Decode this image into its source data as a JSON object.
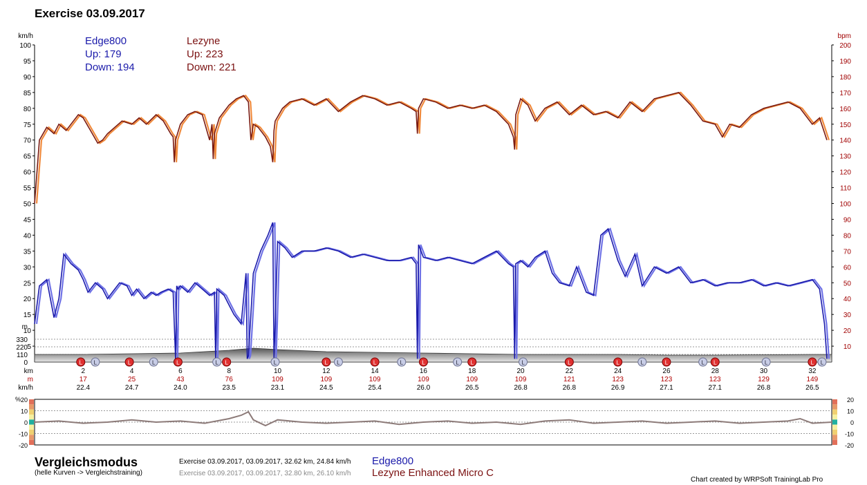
{
  "title": "Exercise 03.09.2017",
  "colors": {
    "edge": "#1a1aaa",
    "edge_light": "#6f72e6",
    "lezyne": "#7a1010",
    "hr_light": "#f08a3c",
    "hr_dark": "#7a1a10",
    "diff": "#8c7a78",
    "elev": "#555555"
  },
  "legend": {
    "edge": {
      "name": "Edge800",
      "up": "Up: 179",
      "down": "Down: 194"
    },
    "lezyne": {
      "name": "Lezyne",
      "up": "Up: 223",
      "down": "Down: 221"
    }
  },
  "chart_data": {
    "type": "line",
    "left_axis": {
      "unit": "km/h",
      "ticks": [
        "100",
        "95",
        "90",
        "85",
        "80",
        "75",
        "70",
        "65",
        "60",
        "55",
        "50",
        "45",
        "40",
        "35",
        "30",
        "25",
        "20",
        "15",
        "10",
        "5"
      ],
      "range": [
        0,
        100
      ]
    },
    "right_axis": {
      "unit": "bpm",
      "ticks": [
        "200",
        "190",
        "180",
        "170",
        "160",
        "150",
        "140",
        "130",
        "120",
        "110",
        "100",
        "90",
        "80",
        "70",
        "60",
        "50",
        "40",
        "30",
        "20",
        "10"
      ],
      "range": [
        0,
        200
      ]
    },
    "elevation_axis": {
      "unit": "m",
      "ticks": [
        "330",
        "220",
        "110",
        "0"
      ],
      "range": [
        0,
        440
      ]
    },
    "x_range": [
      0,
      32.8
    ],
    "km_row": {
      "label": "km",
      "values": [
        "2",
        "4",
        "6",
        "8",
        "10",
        "12",
        "14",
        "16",
        "18",
        "20",
        "22",
        "24",
        "26",
        "28",
        "30",
        "32"
      ]
    },
    "m_row": {
      "label": "m",
      "values": [
        "17",
        "25",
        "43",
        "76",
        "109",
        "109",
        "109",
        "109",
        "109",
        "109",
        "121",
        "123",
        "123",
        "123",
        "129",
        "149"
      ]
    },
    "kmh_row": {
      "label": "km/h",
      "values": [
        "22.4",
        "24.7",
        "24.0",
        "23.5",
        "23.1",
        "24.5",
        "25.4",
        "26.0",
        "26.5",
        "26.8",
        "26.8",
        "26.9",
        "27.1",
        "27.1",
        "26.8",
        "26.5"
      ]
    },
    "speed_series": {
      "x": [
        0,
        0.2,
        0.5,
        0.8,
        1.0,
        1.2,
        1.5,
        1.8,
        2.0,
        2.2,
        2.5,
        2.8,
        3.0,
        3.2,
        3.5,
        3.8,
        4.0,
        4.2,
        4.5,
        4.8,
        5.0,
        5.2,
        5.5,
        5.7,
        5.8,
        5.85,
        5.9,
        6.0,
        6.3,
        6.6,
        6.9,
        7.2,
        7.4,
        7.45,
        7.5,
        7.8,
        8.0,
        8.2,
        8.5,
        8.7,
        8.75,
        8.8,
        9.0,
        9.3,
        9.6,
        9.8,
        9.85,
        9.9,
        10.0,
        10.3,
        10.6,
        11.0,
        11.5,
        12.0,
        12.5,
        13.0,
        13.5,
        14.0,
        14.5,
        15.0,
        15.5,
        15.7,
        15.75,
        15.8,
        16.0,
        16.5,
        17.0,
        17.5,
        18.0,
        18.5,
        19.0,
        19.5,
        19.7,
        19.75,
        19.8,
        20.0,
        20.3,
        20.6,
        21.0,
        21.3,
        21.6,
        22.0,
        22.3,
        22.7,
        23.0,
        23.3,
        23.6,
        24.0,
        24.3,
        24.7,
        25.0,
        25.5,
        26.0,
        26.5,
        27.0,
        27.5,
        28.0,
        28.5,
        29.0,
        29.5,
        30.0,
        30.5,
        31.0,
        31.5,
        32.0,
        32.3,
        32.5,
        32.6
      ],
      "y": [
        12,
        24,
        26,
        14,
        20,
        34,
        31,
        29,
        26,
        22,
        25,
        23,
        20,
        22,
        25,
        24,
        21,
        23,
        20,
        22,
        21,
        22,
        23,
        22,
        1,
        24,
        23,
        24,
        22,
        25,
        23,
        21,
        22,
        1,
        23,
        21,
        18,
        15,
        12,
        28,
        1,
        2,
        28,
        35,
        40,
        44,
        1,
        12,
        38,
        36,
        33,
        35,
        35,
        36,
        35,
        33,
        34,
        33,
        32,
        32,
        33,
        31,
        1,
        37,
        33,
        32,
        33,
        32,
        31,
        33,
        35,
        31,
        30,
        1,
        31,
        32,
        30,
        33,
        35,
        28,
        25,
        24,
        30,
        22,
        21,
        40,
        42,
        32,
        27,
        34,
        24,
        30,
        28,
        30,
        25,
        26,
        24,
        25,
        25,
        26,
        24,
        25,
        24,
        25,
        26,
        23,
        12,
        1
      ]
    },
    "hr_series": {
      "x": [
        0,
        0.2,
        0.5,
        0.8,
        1.0,
        1.3,
        1.6,
        1.8,
        2.0,
        2.3,
        2.6,
        2.8,
        3.0,
        3.3,
        3.6,
        4.0,
        4.3,
        4.6,
        5.0,
        5.3,
        5.6,
        5.7,
        5.75,
        5.8,
        6.0,
        6.3,
        6.6,
        6.9,
        7.2,
        7.3,
        7.35,
        7.4,
        7.6,
        8.0,
        8.3,
        8.6,
        8.8,
        8.9,
        9.0,
        9.2,
        9.5,
        9.7,
        9.8,
        9.85,
        9.9,
        10.2,
        10.5,
        11.0,
        11.5,
        12.0,
        12.5,
        13.0,
        13.5,
        14.0,
        14.5,
        15.0,
        15.5,
        15.7,
        15.75,
        15.8,
        16.0,
        16.5,
        17.0,
        17.5,
        18.0,
        18.5,
        19.0,
        19.5,
        19.7,
        19.75,
        19.8,
        20.0,
        20.3,
        20.6,
        21.0,
        21.5,
        22.0,
        22.5,
        23.0,
        23.5,
        24.0,
        24.5,
        25.0,
        25.5,
        26.0,
        26.5,
        27.0,
        27.5,
        28.0,
        28.3,
        28.6,
        29.0,
        29.5,
        30.0,
        30.5,
        31.0,
        31.5,
        32.0,
        32.3,
        32.6
      ],
      "y": [
        100,
        140,
        148,
        144,
        150,
        146,
        152,
        156,
        154,
        146,
        138,
        140,
        144,
        148,
        152,
        150,
        154,
        150,
        156,
        152,
        144,
        142,
        126,
        140,
        150,
        156,
        158,
        156,
        140,
        150,
        128,
        144,
        154,
        162,
        166,
        168,
        164,
        140,
        150,
        148,
        142,
        136,
        126,
        146,
        152,
        160,
        164,
        166,
        162,
        166,
        158,
        164,
        168,
        166,
        162,
        164,
        160,
        158,
        144,
        160,
        166,
        164,
        160,
        162,
        160,
        162,
        158,
        150,
        142,
        134,
        156,
        166,
        162,
        152,
        160,
        164,
        156,
        162,
        156,
        158,
        154,
        164,
        158,
        166,
        168,
        170,
        162,
        152,
        150,
        142,
        150,
        148,
        156,
        160,
        162,
        164,
        160,
        150,
        154,
        140
      ]
    },
    "elevation": {
      "x": [
        0,
        2,
        4,
        6,
        8,
        9,
        10,
        12,
        14,
        16,
        18,
        20,
        22,
        24,
        26,
        28,
        30,
        32,
        32.8
      ],
      "y": [
        110,
        110,
        120,
        130,
        170,
        200,
        180,
        150,
        140,
        130,
        120,
        110,
        110,
        110,
        100,
        100,
        105,
        110,
        110
      ]
    },
    "laps_left": [
      [
        1.9,
        "L"
      ],
      [
        3.9,
        "L"
      ],
      [
        5.9,
        "L"
      ],
      [
        7.9,
        "L"
      ],
      [
        12,
        "L"
      ],
      [
        14,
        "L"
      ],
      [
        16,
        "L"
      ],
      [
        18,
        "L"
      ],
      [
        22,
        "L"
      ],
      [
        24,
        "L"
      ],
      [
        26,
        "L"
      ],
      [
        28,
        "L"
      ],
      [
        32,
        "L"
      ]
    ],
    "laps_right": [
      [
        2.5,
        "L"
      ],
      [
        4.9,
        "L"
      ],
      [
        7.5,
        "L"
      ],
      [
        9.9,
        "L"
      ],
      [
        12.5,
        "L"
      ],
      [
        15.1,
        "L"
      ],
      [
        17.4,
        "L"
      ],
      [
        20.1,
        "L"
      ],
      [
        25,
        "L"
      ],
      [
        27.5,
        "L"
      ],
      [
        30.1,
        "L"
      ],
      [
        32.4,
        "L"
      ]
    ],
    "diff_axis": {
      "unit": "%",
      "ticks": [
        "20",
        "10",
        "0",
        "-10",
        "-20"
      ],
      "range": [
        -20,
        20
      ]
    },
    "diff_series": {
      "x": [
        0,
        1,
        2,
        3,
        4,
        5,
        6,
        7,
        8,
        8.5,
        8.8,
        9,
        9.5,
        10,
        11,
        12,
        13,
        14,
        15,
        16,
        17,
        18,
        19,
        20,
        21,
        22,
        23,
        24,
        25,
        26,
        27,
        28,
        29,
        30,
        31,
        31.5,
        32,
        32.8
      ],
      "y": [
        0,
        1,
        -1,
        0,
        2,
        0,
        1,
        -1,
        3,
        6,
        9,
        2,
        -3,
        2,
        0,
        -1,
        0,
        1,
        -2,
        0,
        1,
        -1,
        0,
        -2,
        1,
        2,
        -1,
        0,
        1,
        -1,
        0,
        1,
        -1,
        0,
        1,
        3,
        -1,
        0
      ]
    }
  },
  "footer": {
    "mode_title": "Vergleichsmodus",
    "mode_sub": "(helle Kurven -> Vergleichstraining)",
    "row1": "Exercise 03.09.2017,  03.09.2017, 32.62 km, 24.84 km/h",
    "row1_device": "Edge800",
    "row2": "Exercise 03.09.2017,  03.09.2017, 32.80 km, 26.10 km/h",
    "row2_device": "Lezyne Enhanced Micro C",
    "credit": "Chart created by WRPSoft TrainingLab Pro"
  }
}
